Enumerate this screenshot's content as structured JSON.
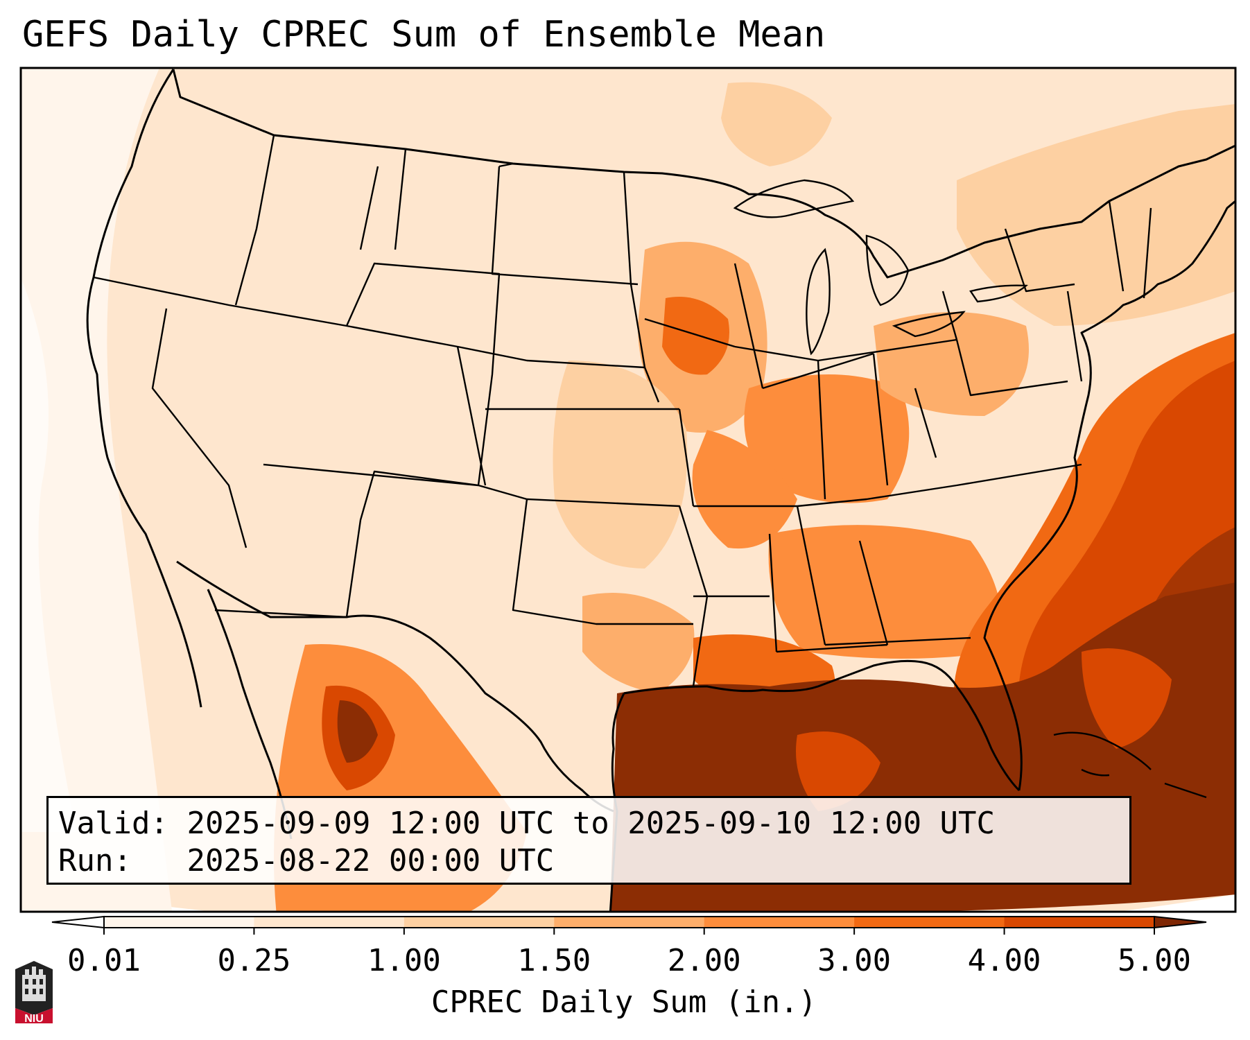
{
  "title": "GEFS Daily CPREC Sum of Ensemble Mean",
  "info": {
    "valid_label": "Valid:",
    "valid_value": "2025-09-09 12:00 UTC to 2025-09-10 12:00 UTC",
    "run_label": "Run:",
    "run_value": "2025-08-22 00:00 UTC"
  },
  "colorbar": {
    "label": "CPREC Daily Sum (in.)",
    "ticks": [
      "0.01",
      "0.25",
      "1.00",
      "1.50",
      "2.00",
      "3.00",
      "4.00",
      "5.00"
    ],
    "colors": [
      "#fff5eb",
      "#fee6ce",
      "#fdd0a2",
      "#fdae6b",
      "#fd8d3c",
      "#f16913",
      "#d94801",
      "#8c2d04"
    ],
    "under_color": "#ffffff",
    "over_color": "#7f2704"
  },
  "map": {
    "projection": "lambert-conformal",
    "region": "CONUS",
    "features": [
      "state-borders",
      "country-borders",
      "coastlines"
    ]
  },
  "logo": {
    "text": "NIU",
    "icon": "niu-logo-icon"
  }
}
